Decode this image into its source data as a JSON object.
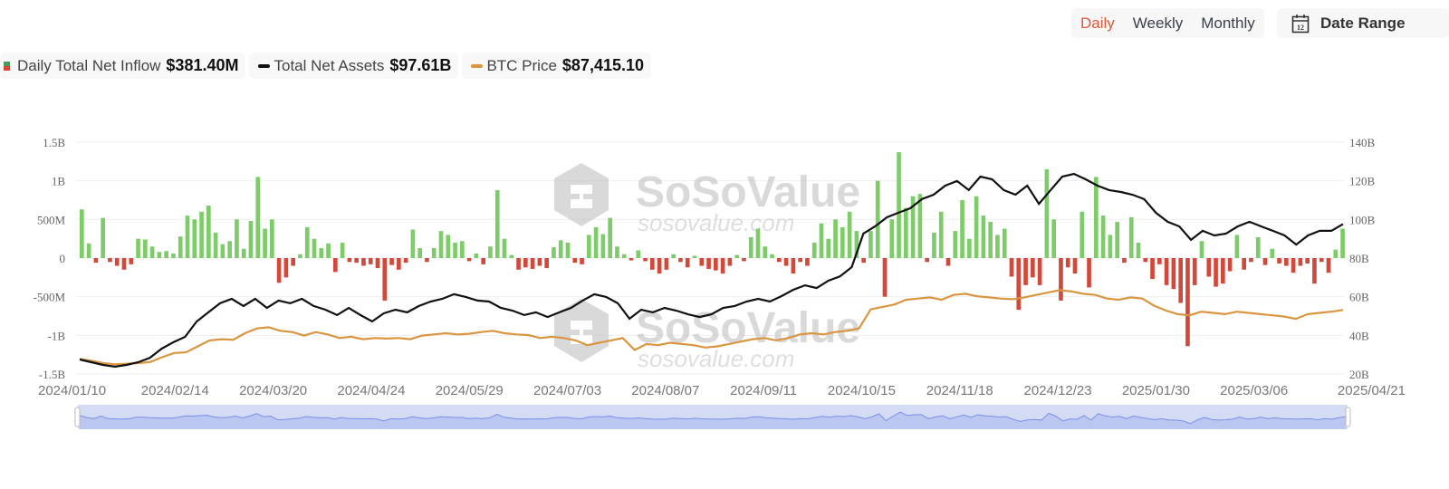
{
  "controls": {
    "periods": [
      "Daily",
      "Weekly",
      "Monthly"
    ],
    "active": "Daily",
    "date_range_label": "Date Range",
    "calendar_day": "12"
  },
  "legend": [
    {
      "label": "Daily Total Net Inflow",
      "value": "$381.40M"
    },
    {
      "label": "Total Net Assets",
      "value": "$97.61B"
    },
    {
      "label": "BTC Price",
      "value": "$87,415.10"
    }
  ],
  "watermark": {
    "brand": "SoSoValue",
    "url": "sosovalue.com"
  },
  "colors": {
    "positive": "#7ecb6a",
    "negative": "#d2493c",
    "assets": "#111111",
    "btc": "#d9953f",
    "navigator": "#c9d2f3",
    "navigator_line": "#7b8fe8"
  },
  "chart_data": {
    "type": "bar+line",
    "x_ticks": [
      "2024/01/10",
      "2024/02/14",
      "2024/03/20",
      "2024/04/24",
      "2024/05/29",
      "2024/07/03",
      "2024/08/07",
      "2024/09/11",
      "2024/10/15",
      "2024/11/18",
      "2024/12/23",
      "2025/01/30",
      "2025/03/06",
      "2025/04/21"
    ],
    "y_left": {
      "ticks": [
        "1.5B",
        "1B",
        "500M",
        "0",
        "-500M",
        "-1B",
        "-1.5B"
      ],
      "range_millions": [
        -1500,
        1500
      ]
    },
    "y_right": {
      "ticks": [
        "140B",
        "120B",
        "100B",
        "80B",
        "60B",
        "40B",
        "20B"
      ],
      "range_billions": [
        20,
        140
      ]
    },
    "btc_hidden_range_thousands": [
      33.9,
      227.8
    ],
    "series": [
      {
        "name": "Daily Total Net Inflow",
        "unit": "USD millions",
        "type": "bar",
        "values": [
          630,
          190,
          -60,
          520,
          -50,
          -100,
          -150,
          -80,
          250,
          240,
          150,
          80,
          90,
          60,
          280,
          550,
          500,
          600,
          680,
          330,
          180,
          220,
          500,
          120,
          480,
          1050,
          380,
          500,
          -320,
          -250,
          -100,
          50,
          400,
          250,
          130,
          190,
          -180,
          200,
          -50,
          -60,
          -100,
          -80,
          -130,
          -550,
          -90,
          -150,
          -60,
          370,
          130,
          -50,
          130,
          350,
          300,
          200,
          220,
          -40,
          60,
          -80,
          150,
          880,
          250,
          40,
          -150,
          -120,
          -140,
          -100,
          -130,
          140,
          230,
          200,
          -60,
          -80,
          300,
          400,
          310,
          520,
          150,
          50,
          -30,
          100,
          -40,
          -150,
          -200,
          -150,
          50,
          -50,
          -120,
          30,
          -100,
          -140,
          -160,
          -200,
          -100,
          40,
          -40,
          270,
          380,
          150,
          50,
          -50,
          -100,
          -200,
          -50,
          -100,
          200,
          450,
          250,
          500,
          400,
          600,
          350,
          -60,
          350,
          1000,
          -500,
          500,
          1370,
          650,
          800,
          830,
          -50,
          330,
          600,
          -100,
          350,
          750,
          250,
          800,
          550,
          470,
          300,
          380,
          -240,
          -670,
          -350,
          -250,
          -350,
          1150,
          500,
          -550,
          -120,
          -200,
          600,
          -380,
          1050,
          550,
          300,
          470,
          -60,
          530,
          200,
          -50,
          -270,
          -80,
          -350,
          -400,
          -580,
          -1140,
          -350,
          220,
          -240,
          -370,
          -330,
          -170,
          300,
          -150,
          -50,
          270,
          -90,
          120,
          -70,
          -100,
          -190,
          -100,
          -70,
          -330,
          -50,
          -190,
          110,
          381.4
        ]
      },
      {
        "name": "Total Net Assets",
        "unit": "USD billions",
        "type": "line",
        "values": [
          27.5,
          26.1,
          24.7,
          23.8,
          24.7,
          26.1,
          28.4,
          33.1,
          36.4,
          39.2,
          47.2,
          51.9,
          56.6,
          58.9,
          55.2,
          58.9,
          54.2,
          58,
          56.6,
          58.9,
          55.2,
          53.3,
          50.5,
          54.2,
          50.5,
          47.2,
          51.4,
          53.3,
          51.9,
          55.2,
          57.5,
          58.9,
          61.3,
          59.9,
          58,
          57.5,
          54.2,
          52.8,
          50.5,
          51.9,
          49.5,
          51.9,
          54.2,
          58,
          61.3,
          59.9,
          56.6,
          48.6,
          53.3,
          51.9,
          54.2,
          52.8,
          50.9,
          49.5,
          50.9,
          54.2,
          55.2,
          57.5,
          58.9,
          57.5,
          60.3,
          63.6,
          65.9,
          64.5,
          68.3,
          70.6,
          75.3,
          92.7,
          96.4,
          101.1,
          103.5,
          105.8,
          110.5,
          112.8,
          117.5,
          119.9,
          115.2,
          122.2,
          120.8,
          115.2,
          112.8,
          117.5,
          108.1,
          115.2,
          122.2,
          123.6,
          120.8,
          117.5,
          115.2,
          114.2,
          112.8,
          110.5,
          103.5,
          98.8,
          96.4,
          89.4,
          94.1,
          91.7,
          92.7,
          96.4,
          98.8,
          96.4,
          94.1,
          91.7,
          87,
          91.7,
          94.1,
          94.1,
          97.61
        ]
      },
      {
        "name": "BTC Price",
        "unit": "USD thousands",
        "type": "line",
        "values": [
          46.5,
          45,
          43,
          42,
          42.5,
          43,
          44,
          48,
          51.5,
          52,
          57,
          62,
          63,
          62.5,
          68,
          72,
          73,
          70,
          69,
          66,
          69,
          67,
          64,
          65,
          63,
          64,
          63.5,
          64,
          63,
          66,
          67,
          68,
          67,
          67.5,
          69,
          70,
          68,
          67,
          66.5,
          64,
          65,
          64,
          62,
          58,
          60,
          62,
          64,
          54,
          59,
          58,
          60,
          59,
          58,
          56,
          57,
          59,
          61,
          63,
          64,
          62,
          64,
          67,
          68,
          67,
          69,
          70,
          72,
          88,
          90,
          92,
          96,
          97,
          98,
          96,
          100,
          101,
          99,
          98,
          97,
          96.5,
          98,
          100,
          102,
          104,
          103,
          101,
          100,
          97,
          96,
          98,
          97,
          91,
          87,
          84,
          83,
          86,
          85,
          84,
          86,
          85,
          84,
          83,
          82,
          80,
          84,
          85,
          86,
          87.415
        ]
      }
    ]
  }
}
